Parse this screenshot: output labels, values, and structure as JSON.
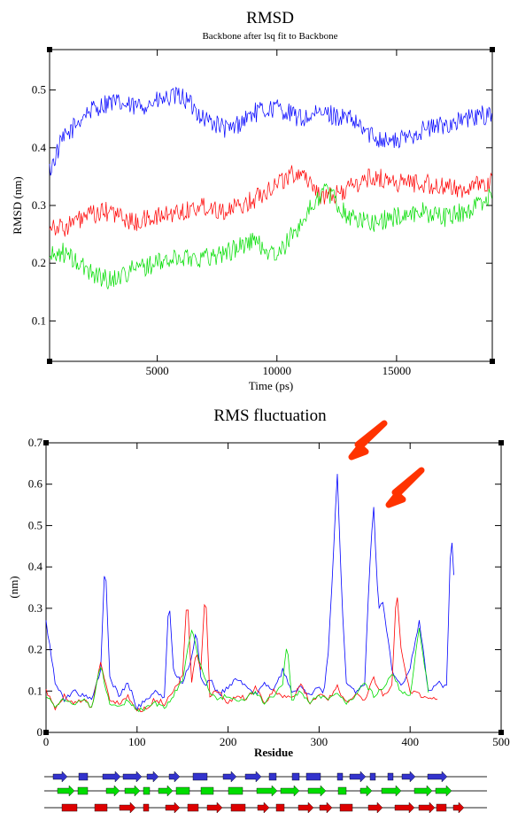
{
  "chart_data": [
    {
      "type": "line",
      "title": "RMSD",
      "subtitle": "Backbone after lsq fit to Backbone",
      "xlabel": "Time (ps)",
      "ylabel": "RMSD (nm)",
      "xlim": [
        500,
        19000
      ],
      "ylim": [
        0.03,
        0.57
      ],
      "xticks": [
        "5000",
        "10000",
        "15000"
      ],
      "yticks": [
        "0.1",
        "0.2",
        "0.3",
        "0.4",
        "0.5"
      ],
      "legend": "none",
      "series": [
        {
          "color": "#0000ff",
          "x": [
            500,
            1000,
            2000,
            3000,
            4000,
            5000,
            6000,
            7000,
            8000,
            9000,
            10000,
            11000,
            12000,
            13000,
            14000,
            15000,
            16000,
            17000,
            18000,
            19000
          ],
          "values": [
            0.36,
            0.41,
            0.46,
            0.48,
            0.47,
            0.48,
            0.49,
            0.45,
            0.43,
            0.46,
            0.47,
            0.45,
            0.46,
            0.45,
            0.42,
            0.41,
            0.43,
            0.44,
            0.45,
            0.46
          ]
        },
        {
          "color": "#ff0000",
          "x": [
            500,
            1000,
            2000,
            3000,
            4000,
            5000,
            6000,
            7000,
            8000,
            9000,
            10000,
            11000,
            12000,
            13000,
            14000,
            15000,
            16000,
            17000,
            18000,
            19000
          ],
          "values": [
            0.27,
            0.26,
            0.28,
            0.29,
            0.27,
            0.28,
            0.29,
            0.3,
            0.29,
            0.31,
            0.34,
            0.36,
            0.31,
            0.33,
            0.35,
            0.34,
            0.34,
            0.33,
            0.33,
            0.34
          ]
        },
        {
          "color": "#00dd00",
          "x": [
            500,
            1000,
            2000,
            3000,
            4000,
            5000,
            6000,
            7000,
            8000,
            9000,
            10000,
            11000,
            12000,
            13000,
            14000,
            15000,
            16000,
            17000,
            18000,
            19000
          ],
          "values": [
            0.21,
            0.22,
            0.19,
            0.17,
            0.19,
            0.2,
            0.21,
            0.21,
            0.22,
            0.24,
            0.21,
            0.27,
            0.33,
            0.28,
            0.27,
            0.28,
            0.29,
            0.28,
            0.29,
            0.32
          ]
        }
      ]
    },
    {
      "type": "line",
      "title": "RMS fluctuation",
      "xlabel": "Residue",
      "ylabel": "(nm)",
      "xlim": [
        0,
        500
      ],
      "ylim": [
        0,
        0.7
      ],
      "xticks": [
        "0",
        "100",
        "200",
        "300",
        "400",
        "500"
      ],
      "yticks": [
        "0",
        "0.1",
        "0.2",
        "0.3",
        "0.4",
        "0.5",
        "0.6",
        "0.7"
      ],
      "legend": "none",
      "annotations": [
        "red arrow pointing at peak near residue 320",
        "red arrow pointing at peak near residue 360"
      ],
      "series": [
        {
          "color": "#0000ff",
          "x": [
            0,
            10,
            20,
            30,
            40,
            50,
            60,
            65,
            70,
            80,
            90,
            100,
            110,
            120,
            130,
            135,
            140,
            150,
            160,
            165,
            170,
            175,
            180,
            190,
            200,
            210,
            220,
            230,
            240,
            250,
            260,
            270,
            280,
            290,
            300,
            305,
            310,
            315,
            320,
            325,
            330,
            340,
            350,
            355,
            360,
            365,
            370,
            380,
            390,
            400,
            410,
            420,
            430,
            440,
            445,
            448
          ],
          "values": [
            0.27,
            0.12,
            0.08,
            0.1,
            0.09,
            0.08,
            0.15,
            0.43,
            0.13,
            0.09,
            0.12,
            0.06,
            0.08,
            0.1,
            0.08,
            0.33,
            0.15,
            0.12,
            0.18,
            0.25,
            0.13,
            0.11,
            0.13,
            0.09,
            0.11,
            0.13,
            0.11,
            0.09,
            0.12,
            0.1,
            0.15,
            0.1,
            0.11,
            0.09,
            0.11,
            0.09,
            0.19,
            0.4,
            0.63,
            0.33,
            0.12,
            0.1,
            0.12,
            0.38,
            0.55,
            0.3,
            0.32,
            0.15,
            0.11,
            0.16,
            0.27,
            0.1,
            0.12,
            0.11,
            0.49,
            0.38
          ]
        },
        {
          "color": "#ff0000",
          "x": [
            0,
            10,
            20,
            30,
            40,
            50,
            60,
            70,
            80,
            90,
            100,
            110,
            120,
            130,
            140,
            150,
            155,
            160,
            165,
            170,
            175,
            180,
            190,
            200,
            210,
            220,
            230,
            240,
            250,
            260,
            270,
            280,
            290,
            300,
            310,
            320,
            330,
            340,
            350,
            360,
            370,
            380,
            385,
            390,
            400,
            410,
            420,
            430
          ],
          "values": [
            0.1,
            0.06,
            0.09,
            0.07,
            0.08,
            0.06,
            0.17,
            0.08,
            0.07,
            0.09,
            0.05,
            0.06,
            0.08,
            0.07,
            0.1,
            0.14,
            0.34,
            0.12,
            0.2,
            0.15,
            0.35,
            0.09,
            0.1,
            0.07,
            0.09,
            0.08,
            0.11,
            0.07,
            0.1,
            0.09,
            0.08,
            0.12,
            0.07,
            0.09,
            0.08,
            0.11,
            0.07,
            0.09,
            0.08,
            0.13,
            0.09,
            0.11,
            0.35,
            0.2,
            0.1,
            0.09,
            0.08,
            0.08
          ]
        },
        {
          "color": "#00dd00",
          "x": [
            0,
            10,
            20,
            30,
            40,
            50,
            60,
            70,
            80,
            90,
            100,
            110,
            120,
            130,
            140,
            150,
            160,
            170,
            180,
            190,
            200,
            210,
            220,
            230,
            240,
            250,
            260,
            265,
            270,
            280,
            290,
            300,
            310,
            320,
            330,
            340,
            350,
            360,
            370,
            380,
            390,
            400,
            410,
            420
          ],
          "values": [
            0.09,
            0.06,
            0.08,
            0.07,
            0.08,
            0.06,
            0.16,
            0.07,
            0.06,
            0.08,
            0.05,
            0.06,
            0.07,
            0.06,
            0.09,
            0.13,
            0.25,
            0.16,
            0.1,
            0.08,
            0.09,
            0.07,
            0.08,
            0.1,
            0.07,
            0.09,
            0.12,
            0.22,
            0.08,
            0.1,
            0.07,
            0.09,
            0.08,
            0.1,
            0.07,
            0.09,
            0.12,
            0.09,
            0.11,
            0.14,
            0.1,
            0.09,
            0.25,
            0.1
          ]
        }
      ]
    }
  ]
}
